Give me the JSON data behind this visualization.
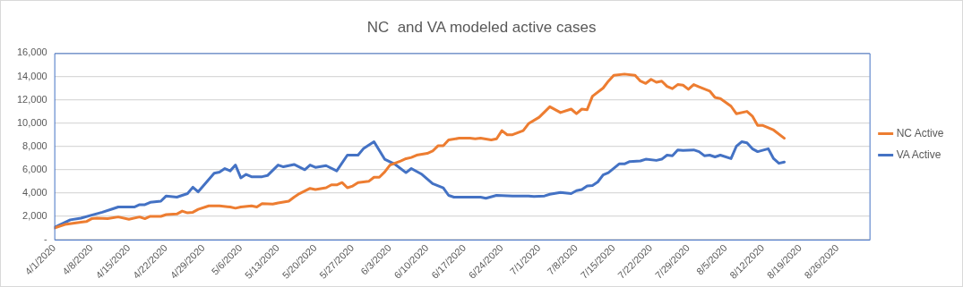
{
  "chart_data": {
    "type": "line",
    "title": "NC  and VA modeled active cases",
    "series": [
      {
        "name": "NC Active",
        "color": "#ed7d31",
        "x": [
          "2020-04-01",
          "2020-04-03",
          "2020-04-06",
          "2020-04-07",
          "2020-04-08",
          "2020-04-09",
          "2020-04-11",
          "2020-04-13",
          "2020-04-15",
          "2020-04-17",
          "2020-04-18",
          "2020-04-19",
          "2020-04-21",
          "2020-04-22",
          "2020-04-24",
          "2020-04-25",
          "2020-04-26",
          "2020-04-27",
          "2020-04-28",
          "2020-04-30",
          "2020-05-02",
          "2020-05-04",
          "2020-05-05",
          "2020-05-06",
          "2020-05-08",
          "2020-05-09",
          "2020-05-10",
          "2020-05-12",
          "2020-05-13",
          "2020-05-15",
          "2020-05-16",
          "2020-05-17",
          "2020-05-19",
          "2020-05-20",
          "2020-05-22",
          "2020-05-23",
          "2020-05-24",
          "2020-05-25",
          "2020-05-26",
          "2020-05-27",
          "2020-05-28",
          "2020-05-30",
          "2020-05-31",
          "2020-06-01",
          "2020-06-02",
          "2020-06-03",
          "2020-06-05",
          "2020-06-06",
          "2020-06-07",
          "2020-06-08",
          "2020-06-10",
          "2020-06-11",
          "2020-06-12",
          "2020-06-13",
          "2020-06-14",
          "2020-06-16",
          "2020-06-18",
          "2020-06-19",
          "2020-06-20",
          "2020-06-22",
          "2020-06-23",
          "2020-06-24",
          "2020-06-25",
          "2020-06-26",
          "2020-06-28",
          "2020-06-29",
          "2020-07-01",
          "2020-07-03",
          "2020-07-05",
          "2020-07-07",
          "2020-07-08",
          "2020-07-09",
          "2020-07-10",
          "2020-07-11",
          "2020-07-13",
          "2020-07-14",
          "2020-07-15",
          "2020-07-17",
          "2020-07-19",
          "2020-07-20",
          "2020-07-21",
          "2020-07-22",
          "2020-07-23",
          "2020-07-24",
          "2020-07-25",
          "2020-07-26",
          "2020-07-27",
          "2020-07-28",
          "2020-07-29",
          "2020-07-30",
          "2020-07-31",
          "2020-08-02",
          "2020-08-03",
          "2020-08-04",
          "2020-08-06",
          "2020-08-07",
          "2020-08-09",
          "2020-08-10",
          "2020-08-11",
          "2020-08-12",
          "2020-08-14",
          "2020-08-16"
        ],
        "values": [
          1000,
          1300,
          1500,
          1550,
          1800,
          1850,
          1800,
          1950,
          1750,
          1950,
          1800,
          2000,
          2000,
          2150,
          2200,
          2450,
          2300,
          2350,
          2600,
          2900,
          2900,
          2800,
          2700,
          2800,
          2900,
          2800,
          3100,
          3050,
          3150,
          3300,
          3650,
          3950,
          4400,
          4300,
          4450,
          4700,
          4700,
          4900,
          4450,
          4600,
          4900,
          5000,
          5350,
          5350,
          5800,
          6400,
          6750,
          6950,
          7050,
          7250,
          7400,
          7600,
          8050,
          8050,
          8550,
          8700,
          8700,
          8650,
          8700,
          8550,
          8650,
          9350,
          9000,
          9000,
          9350,
          9950,
          10500,
          11400,
          10900,
          11200,
          10800,
          11200,
          11150,
          12300,
          13000,
          13600,
          14100,
          14200,
          14100,
          13600,
          13400,
          13750,
          13500,
          13600,
          13150,
          12950,
          13300,
          13250,
          12900,
          13300,
          13100,
          12750,
          12200,
          12100,
          11450,
          10800,
          11000,
          10600,
          9800,
          9800,
          9400,
          8700
        ]
      },
      {
        "name": "VA Active",
        "color": "#4472c4",
        "x": [
          "2020-04-01",
          "2020-04-04",
          "2020-04-06",
          "2020-04-08",
          "2020-04-10",
          "2020-04-12",
          "2020-04-13",
          "2020-04-16",
          "2020-04-17",
          "2020-04-18",
          "2020-04-19",
          "2020-04-21",
          "2020-04-22",
          "2020-04-24",
          "2020-04-26",
          "2020-04-27",
          "2020-04-28",
          "2020-05-01",
          "2020-05-02",
          "2020-05-03",
          "2020-05-04",
          "2020-05-05",
          "2020-05-06",
          "2020-05-07",
          "2020-05-08",
          "2020-05-10",
          "2020-05-11",
          "2020-05-13",
          "2020-05-14",
          "2020-05-16",
          "2020-05-18",
          "2020-05-19",
          "2020-05-20",
          "2020-05-22",
          "2020-05-24",
          "2020-05-26",
          "2020-05-28",
          "2020-05-29",
          "2020-05-31",
          "2020-06-02",
          "2020-06-04",
          "2020-06-06",
          "2020-06-07",
          "2020-06-09",
          "2020-06-11",
          "2020-06-13",
          "2020-06-14",
          "2020-06-15",
          "2020-06-20",
          "2020-06-21",
          "2020-06-23",
          "2020-06-26",
          "2020-06-29",
          "2020-06-30",
          "2020-07-02",
          "2020-07-03",
          "2020-07-05",
          "2020-07-07",
          "2020-07-08",
          "2020-07-09",
          "2020-07-10",
          "2020-07-11",
          "2020-07-12",
          "2020-07-13",
          "2020-07-14",
          "2020-07-16",
          "2020-07-17",
          "2020-07-18",
          "2020-07-20",
          "2020-07-21",
          "2020-07-23",
          "2020-07-24",
          "2020-07-25",
          "2020-07-26",
          "2020-07-27",
          "2020-07-28",
          "2020-07-30",
          "2020-07-31",
          "2020-08-01",
          "2020-08-02",
          "2020-08-03",
          "2020-08-04",
          "2020-08-06",
          "2020-08-07",
          "2020-08-08",
          "2020-08-09",
          "2020-08-10",
          "2020-08-11",
          "2020-08-13",
          "2020-08-14",
          "2020-08-15",
          "2020-08-16"
        ],
        "values": [
          1050,
          1700,
          1850,
          2100,
          2350,
          2650,
          2800,
          2800,
          3000,
          3000,
          3200,
          3300,
          3750,
          3650,
          3950,
          4500,
          4100,
          5700,
          5800,
          6100,
          5900,
          6400,
          5300,
          5600,
          5400,
          5400,
          5500,
          6400,
          6250,
          6450,
          6000,
          6400,
          6200,
          6350,
          5900,
          7250,
          7250,
          7800,
          8400,
          6900,
          6450,
          5750,
          6100,
          5600,
          4800,
          4450,
          3800,
          3650,
          3650,
          3550,
          3800,
          3750,
          3750,
          3700,
          3750,
          3900,
          4050,
          3950,
          4200,
          4300,
          4600,
          4650,
          4950,
          5550,
          5750,
          6500,
          6500,
          6700,
          6750,
          6900,
          6800,
          6900,
          7250,
          7200,
          7700,
          7650,
          7700,
          7550,
          7200,
          7250,
          7100,
          7250,
          6950,
          8000,
          8400,
          8300,
          7800,
          7550,
          7800,
          6950,
          6550,
          6650
        ]
      }
    ],
    "xlim": [
      "2020-04-01",
      "2020-09-01"
    ],
    "xticks": [
      {
        "value": "2020-04-01",
        "label": "4/1/2020"
      },
      {
        "value": "2020-04-08",
        "label": "4/8/2020"
      },
      {
        "value": "2020-04-15",
        "label": "4/15/2020"
      },
      {
        "value": "2020-04-22",
        "label": "4/22/2020"
      },
      {
        "value": "2020-04-29",
        "label": "4/29/2020"
      },
      {
        "value": "2020-05-06",
        "label": "5/6/2020"
      },
      {
        "value": "2020-05-13",
        "label": "5/13/2020"
      },
      {
        "value": "2020-05-20",
        "label": "5/20/2020"
      },
      {
        "value": "2020-05-27",
        "label": "5/27/2020"
      },
      {
        "value": "2020-06-03",
        "label": "6/3/2020"
      },
      {
        "value": "2020-06-10",
        "label": "6/10/2020"
      },
      {
        "value": "2020-06-17",
        "label": "6/17/2020"
      },
      {
        "value": "2020-06-24",
        "label": "6/24/2020"
      },
      {
        "value": "2020-07-01",
        "label": "7/1/2020"
      },
      {
        "value": "2020-07-08",
        "label": "7/8/2020"
      },
      {
        "value": "2020-07-15",
        "label": "7/15/2020"
      },
      {
        "value": "2020-07-22",
        "label": "7/22/2020"
      },
      {
        "value": "2020-07-29",
        "label": "7/29/2020"
      },
      {
        "value": "2020-08-05",
        "label": "8/5/2020"
      },
      {
        "value": "2020-08-12",
        "label": "8/12/2020"
      },
      {
        "value": "2020-08-19",
        "label": "8/19/2020"
      },
      {
        "value": "2020-08-26",
        "label": "8/26/2020"
      }
    ],
    "ylim": [
      0,
      16000
    ],
    "yticks": [
      {
        "value": 0,
        "label": "-"
      },
      {
        "value": 2000,
        "label": "2,000"
      },
      {
        "value": 4000,
        "label": "4,000"
      },
      {
        "value": 6000,
        "label": "6,000"
      },
      {
        "value": 8000,
        "label": "8,000"
      },
      {
        "value": 10000,
        "label": "10,000"
      },
      {
        "value": 12000,
        "label": "12,000"
      },
      {
        "value": 14000,
        "label": "14,000"
      },
      {
        "value": 16000,
        "label": "16,000"
      }
    ],
    "grid": "y",
    "legend": "right",
    "marker": "none",
    "line_style": "solid"
  }
}
